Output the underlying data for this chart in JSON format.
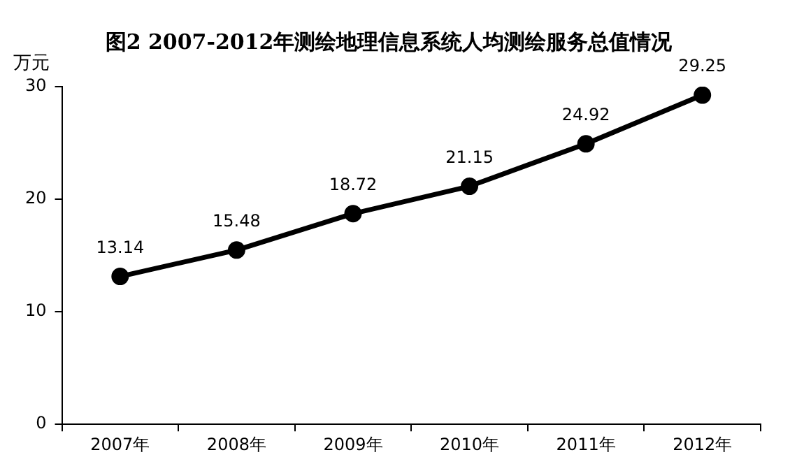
{
  "chart_data": {
    "type": "line",
    "title": "图2 2007-2012年测绘地理信息系统人均测绘服务总值情况",
    "ylabel": "万元",
    "categories": [
      "2007年",
      "2008年",
      "2009年",
      "2010年",
      "2011年",
      "2012年"
    ],
    "series": [
      {
        "color": "#000000",
        "values": [
          13.14,
          15.48,
          18.72,
          21.15,
          24.92,
          29.25
        ]
      }
    ],
    "ylim": [
      0,
      30
    ],
    "yticks": [
      0,
      10,
      20,
      30
    ],
    "grid": false,
    "legend": false,
    "marker": "circle",
    "line_style": "solid",
    "data_labels": true
  }
}
